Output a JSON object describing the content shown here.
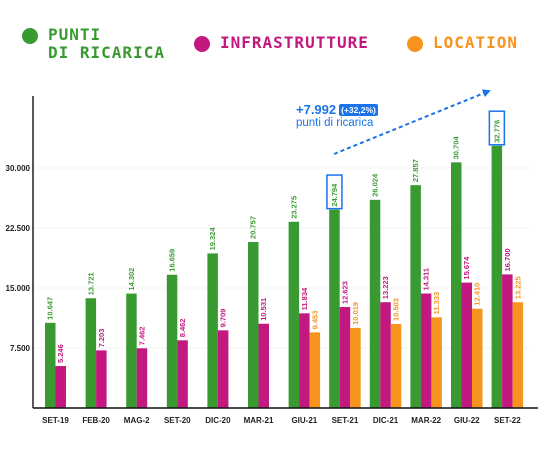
{
  "legend": {
    "items": [
      {
        "label": "PUNTI\nDI RICARICA",
        "color": "#3a9a32"
      },
      {
        "label": "INFRASTRUTTURE",
        "color": "#c2187f"
      },
      {
        "label": "LOCATION",
        "color": "#f7941d"
      }
    ]
  },
  "annotation": {
    "delta": "+7.992",
    "percent": "(+32,2%)",
    "caption": "punti di ricarica"
  },
  "colors": {
    "accent": "#1a73e8",
    "green": "#3a9a32",
    "magenta": "#c2187f",
    "orange": "#f7941d"
  },
  "chart_data": {
    "type": "bar",
    "categories": [
      "SET-19",
      "FEB-20",
      "MAG-2",
      "SET-20",
      "DIC-20",
      "MAR-21",
      "GIU-21",
      "SET-21",
      "DIC-21",
      "MAR-22",
      "GIU-22",
      "SET-22"
    ],
    "ylim": [
      0,
      38000
    ],
    "yticks": [
      {
        "value": 7500,
        "label": "7.500"
      },
      {
        "value": 15000,
        "label": "15.000"
      },
      {
        "value": 22500,
        "label": "22.500"
      },
      {
        "value": 30000,
        "label": "30.000"
      }
    ],
    "grid": true,
    "legend_position": "top",
    "highlighted_values": [
      "SET-21",
      "SET-22"
    ],
    "series": [
      {
        "name": "PUNTI DI RICARICA",
        "color": "#3a9a32",
        "values": [
          10647,
          13721,
          14302,
          16659,
          19324,
          20757,
          23275,
          24794,
          26024,
          27857,
          30704,
          32776
        ],
        "labels": [
          "10.647",
          "13.721",
          "14.302",
          "16.659",
          "19.324",
          "20.757",
          "23.275",
          "24.794",
          "26.024",
          "27.857",
          "30.704",
          "32.776"
        ]
      },
      {
        "name": "INFRASTRUTTURE",
        "color": "#c2187f",
        "values": [
          5246,
          7203,
          7462,
          8462,
          9709,
          10531,
          11834,
          12623,
          13223,
          14311,
          15674,
          16700
        ],
        "labels": [
          "5.246",
          "7.203",
          "7.462",
          "8.462",
          "9.709",
          "10.531",
          "11.834",
          "12.623",
          "13.223",
          "14.311",
          "15.674",
          "16.700"
        ]
      },
      {
        "name": "LOCATION",
        "color": "#f7941d",
        "values": [
          null,
          null,
          null,
          null,
          null,
          null,
          9453,
          10019,
          10503,
          11333,
          12410,
          13225
        ],
        "labels": [
          null,
          null,
          null,
          null,
          null,
          null,
          "9.453",
          "10.019",
          "10.503",
          "11.333",
          "12.410",
          "13.225"
        ]
      }
    ]
  }
}
